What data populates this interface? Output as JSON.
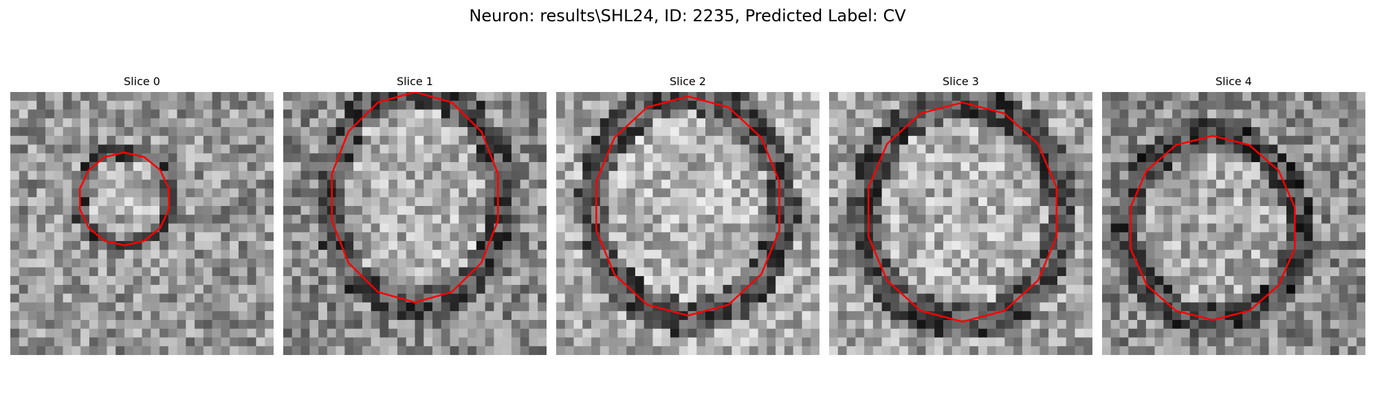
{
  "figure": {
    "title": "Neuron: results\\SHL24, ID: 2235, Predicted Label: CV"
  },
  "panels": [
    {
      "title": "Slice 0",
      "contour_color": "#ff0000"
    },
    {
      "title": "Slice 1",
      "contour_color": "#ff0000"
    },
    {
      "title": "Slice 2",
      "contour_color": "#ff0000"
    },
    {
      "title": "Slice 3",
      "contour_color": "#ff0000"
    },
    {
      "title": "Slice 4",
      "contour_color": "#ff0000"
    }
  ]
}
